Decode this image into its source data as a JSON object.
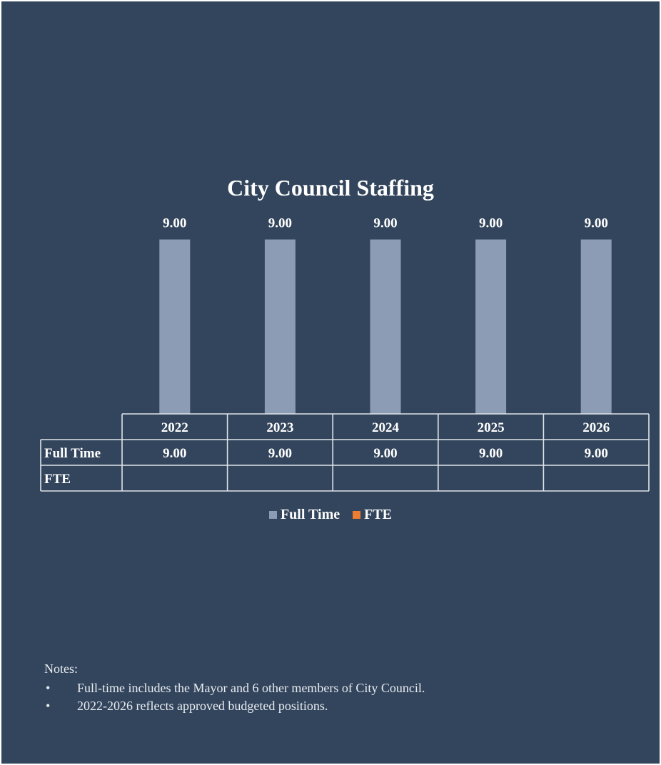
{
  "colors": {
    "background": "#33455c",
    "full_time": "#8c9cb4",
    "fte": "#ed7d31",
    "text": "#ffffff",
    "table_lines": "#dfe4ea"
  },
  "chart_data": {
    "type": "bar",
    "title": "City Council Staffing",
    "categories": [
      "2022",
      "2023",
      "2024",
      "2025",
      "2026"
    ],
    "series": [
      {
        "name": "Full Time",
        "values": [
          9.0,
          9.0,
          9.0,
          9.0,
          9.0
        ],
        "labels": [
          "9.00",
          "9.00",
          "9.00",
          "9.00",
          "9.00"
        ]
      },
      {
        "name": "FTE",
        "values": [
          null,
          null,
          null,
          null,
          null
        ],
        "labels": [
          "",
          "",
          "",
          "",
          ""
        ]
      }
    ],
    "ylim": [
      0,
      9.5
    ],
    "grid": false,
    "legend_position": "bottom",
    "data_table": true
  },
  "notes": {
    "title": "Notes:",
    "bullet": "•",
    "items": [
      "Full-time includes the Mayor and 6 other members of City Council.",
      "2022-2026 reflects approved budgeted positions."
    ]
  }
}
